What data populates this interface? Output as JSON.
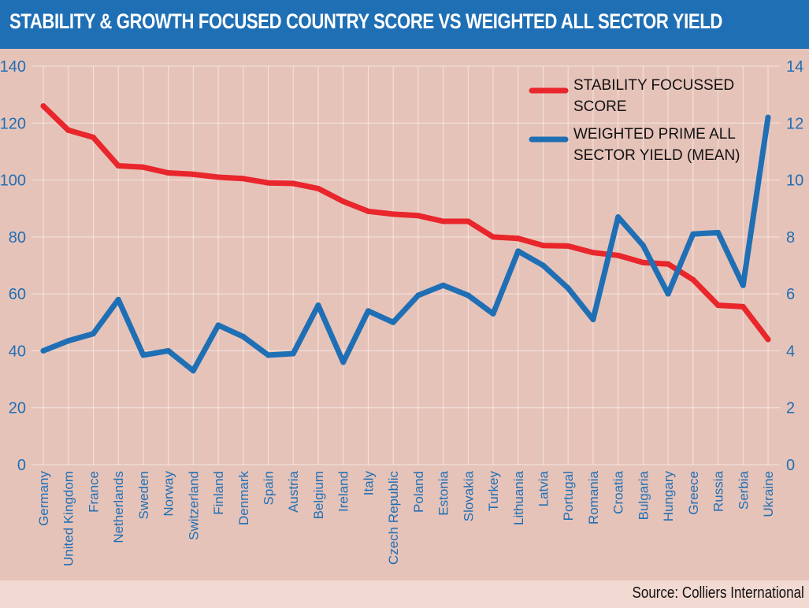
{
  "title": "STABILITY & GROWTH FOCUSED COUNTRY SCORE VS WEIGHTED ALL SECTOR YIELD",
  "source": "Source: Colliers International",
  "colors": {
    "title_bg": "#1f6fb5",
    "plot_bg": "#e6c3b9",
    "score_line": "#e8262b",
    "yield_line": "#1f6fb5",
    "axis_text": "#1f6fb5"
  },
  "chart_data": {
    "type": "line",
    "title": "STABILITY & GROWTH FOCUSED COUNTRY SCORE VS WEIGHTED ALL SECTOR YIELD",
    "categories": [
      "Germany",
      "United Kingdom",
      "France",
      "Netherlands",
      "Sweden",
      "Norway",
      "Switzerland",
      "Finland",
      "Denmark",
      "Spain",
      "Austria",
      "Belgium",
      "Ireland",
      "Italy",
      "Czech Republic",
      "Poland",
      "Estonia",
      "Slovakia",
      "Turkey",
      "Lithuania",
      "Latvia",
      "Portugal",
      "Romania",
      "Croatia",
      "Bulgaria",
      "Hungary",
      "Greece",
      "Russia",
      "Serbia",
      "Ukraine"
    ],
    "y_left": {
      "min": 0,
      "max": 140,
      "ticks": [
        0,
        20,
        40,
        60,
        80,
        100,
        120,
        140
      ]
    },
    "y_right": {
      "min": 0,
      "max": 14,
      "ticks": [
        0,
        2,
        4,
        6,
        8,
        10,
        12,
        14
      ]
    },
    "series": [
      {
        "name": "STABILITY FOCUSSED SCORE",
        "legend_lines": [
          "STABILITY FOCUSSED",
          "SCORE"
        ],
        "axis": "left",
        "color": "#e8262b",
        "values": [
          126,
          117.5,
          115,
          105,
          104.5,
          102.5,
          102,
          101,
          100.5,
          99,
          98.8,
          97,
          92.5,
          89,
          88,
          87.5,
          85.5,
          85.5,
          80,
          79.5,
          77,
          76.8,
          74.5,
          73.5,
          71,
          70.5,
          65,
          56,
          55.5,
          44
        ]
      },
      {
        "name": "WEIGHTED PRIME ALL SECTOR YIELD (MEAN)",
        "legend_lines": [
          "WEIGHTED PRIME ALL",
          "SECTOR YIELD (MEAN)"
        ],
        "axis": "right",
        "color": "#1f6fb5",
        "values": [
          4.0,
          4.35,
          4.6,
          5.8,
          3.85,
          4.0,
          3.3,
          4.9,
          4.5,
          3.85,
          3.9,
          5.6,
          3.6,
          5.4,
          5.0,
          5.95,
          6.3,
          5.95,
          5.3,
          7.5,
          7.0,
          6.2,
          5.1,
          8.7,
          7.7,
          6.0,
          8.1,
          8.15,
          6.3,
          12.2
        ]
      }
    ]
  }
}
